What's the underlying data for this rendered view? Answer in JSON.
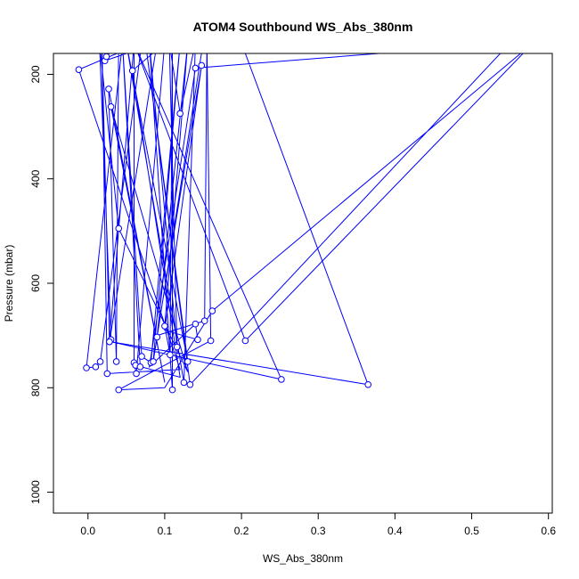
{
  "chart_data": {
    "type": "scatter",
    "title": "ATOM4 Southbound WS_Abs_380nm",
    "xlabel": "WS_Abs_380nm",
    "ylabel": "Pressure (mbar)",
    "xlim": [
      -0.045,
      0.605
    ],
    "ylim": [
      1040,
      160
    ],
    "y_reversed": true,
    "xticks": [
      0.0,
      0.1,
      0.2,
      0.3,
      0.4,
      0.5,
      0.6
    ],
    "xtick_labels": [
      "0.0",
      "0.1",
      "0.2",
      "0.3",
      "0.4",
      "0.5",
      "0.6"
    ],
    "yticks": [
      200,
      400,
      600,
      800,
      1000
    ],
    "ytick_labels": [
      "200",
      "400",
      "600",
      "800",
      "1000"
    ],
    "grid": false,
    "legend": "none",
    "series_color": "#0000ff",
    "series": [
      {
        "points": [
          {
            "x": 0.045,
            "y": 140,
            "m": false
          },
          {
            "x": -0.002,
            "y": 762,
            "m": true
          },
          {
            "x": 0.01,
            "y": 760,
            "m": true
          },
          {
            "x": 0.016,
            "y": 750,
            "m": true
          },
          {
            "x": 0.07,
            "y": 140,
            "m": false
          },
          {
            "x": -0.012,
            "y": 191,
            "m": true
          },
          {
            "x": 0.12,
            "y": 765,
            "m": false
          },
          {
            "x": 0.025,
            "y": 773,
            "m": true
          },
          {
            "x": 0.018,
            "y": 140,
            "m": false
          },
          {
            "x": 0.028,
            "y": 712,
            "m": true
          },
          {
            "x": 0.09,
            "y": 140,
            "m": false
          },
          {
            "x": 0.022,
            "y": 174,
            "m": true
          },
          {
            "x": 0.024,
            "y": 166,
            "m": true
          },
          {
            "x": 0.04,
            "y": 140,
            "m": false
          },
          {
            "x": 0.037,
            "y": 750,
            "m": true
          },
          {
            "x": 0.027,
            "y": 228,
            "m": true
          },
          {
            "x": 0.1,
            "y": 790,
            "m": false
          },
          {
            "x": 0.03,
            "y": 262,
            "m": true
          },
          {
            "x": 0.13,
            "y": 770,
            "m": false
          },
          {
            "x": 0.04,
            "y": 495,
            "m": true
          },
          {
            "x": 0.015,
            "y": 140,
            "m": false
          },
          {
            "x": 0.03,
            "y": 708,
            "m": true
          },
          {
            "x": 0.028,
            "y": 712,
            "m": true
          },
          {
            "x": 0.06,
            "y": 140,
            "m": false
          },
          {
            "x": 0.06,
            "y": 752,
            "m": true
          },
          {
            "x": 0.063,
            "y": 773,
            "m": true
          },
          {
            "x": 0.1,
            "y": 140,
            "m": false
          },
          {
            "x": 0.058,
            "y": 193,
            "m": true
          },
          {
            "x": 0.12,
            "y": 780,
            "m": false
          },
          {
            "x": 0.062,
            "y": 757,
            "m": true
          },
          {
            "x": 0.068,
            "y": 760,
            "m": true
          },
          {
            "x": 0.045,
            "y": 140,
            "m": false
          },
          {
            "x": 0.07,
            "y": 740,
            "m": true
          },
          {
            "x": 0.082,
            "y": 752,
            "m": true
          },
          {
            "x": 0.12,
            "y": 140,
            "m": false
          },
          {
            "x": 0.085,
            "y": 750,
            "m": true
          },
          {
            "x": 0.15,
            "y": 140,
            "m": false
          },
          {
            "x": 0.09,
            "y": 703,
            "m": true
          },
          {
            "x": 0.13,
            "y": 140,
            "m": false
          },
          {
            "x": 0.1,
            "y": 682,
            "m": true
          },
          {
            "x": 0.107,
            "y": 737,
            "m": true
          },
          {
            "x": 0.11,
            "y": 140,
            "m": false
          },
          {
            "x": 0.11,
            "y": 804,
            "m": true
          },
          {
            "x": 0.08,
            "y": 140,
            "m": false
          },
          {
            "x": 0.116,
            "y": 722,
            "m": true
          },
          {
            "x": 0.106,
            "y": 140,
            "m": false
          },
          {
            "x": 0.12,
            "y": 275,
            "m": true
          },
          {
            "x": 0.14,
            "y": 140,
            "m": false
          },
          {
            "x": 0.125,
            "y": 790,
            "m": true
          },
          {
            "x": 0.05,
            "y": 140,
            "m": false
          },
          {
            "x": 0.13,
            "y": 750,
            "m": true
          },
          {
            "x": 0.075,
            "y": 140,
            "m": false
          },
          {
            "x": 0.133,
            "y": 794,
            "m": true
          },
          {
            "x": 0.55,
            "y": 140,
            "m": false
          },
          {
            "x": 0.14,
            "y": 188,
            "m": true
          },
          {
            "x": 0.08,
            "y": 760,
            "m": false
          },
          {
            "x": 0.14,
            "y": 678,
            "m": true
          },
          {
            "x": 0.143,
            "y": 708,
            "m": true
          },
          {
            "x": 0.1,
            "y": 690,
            "m": false
          },
          {
            "x": 0.148,
            "y": 183,
            "m": true
          },
          {
            "x": 0.09,
            "y": 700,
            "m": false
          },
          {
            "x": 0.152,
            "y": 672,
            "m": true
          },
          {
            "x": 0.155,
            "y": 140,
            "m": false
          },
          {
            "x": 0.16,
            "y": 710,
            "m": true
          },
          {
            "x": 0.04,
            "y": 804,
            "m": true
          },
          {
            "x": 0.1,
            "y": 800,
            "m": false
          },
          {
            "x": 0.162,
            "y": 653,
            "m": true
          },
          {
            "x": 0.58,
            "y": 140,
            "m": false
          },
          {
            "x": 0.205,
            "y": 710,
            "m": true
          },
          {
            "x": 0.06,
            "y": 140,
            "m": false
          },
          {
            "x": 0.252,
            "y": 784,
            "m": true
          },
          {
            "x": 0.03,
            "y": 712,
            "m": false
          },
          {
            "x": 0.365,
            "y": 794,
            "m": true
          },
          {
            "x": 0.2,
            "y": 140,
            "m": false
          }
        ]
      }
    ]
  }
}
